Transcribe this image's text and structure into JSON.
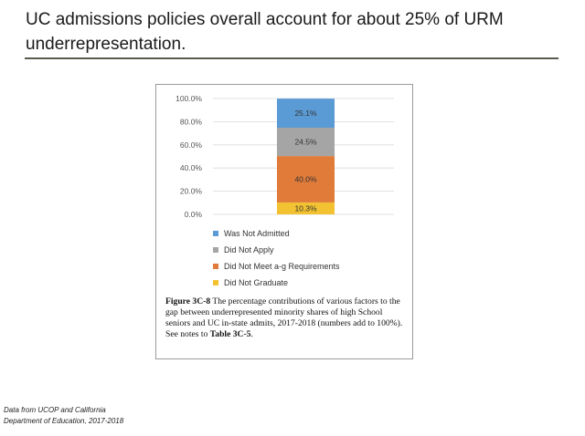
{
  "slide": {
    "title": "UC admissions policies overall account for about 25% of URM underrepresentation.",
    "source_line1": "Data from UCOP and California",
    "source_line2": "Department of Education, 2017-2018"
  },
  "figure": {
    "caption_label": "Figure 3C-8",
    "caption_text": " The percentage contributions of various factors to the gap between underrepresented minority shares of high School seniors and UC in-state admits, 2017-2018 (numbers add to 100%). See notes to ",
    "caption_ref": "Table 3C-5",
    "caption_end": "."
  },
  "chart_data": {
    "type": "bar",
    "stacked": true,
    "categories": [
      ""
    ],
    "ylim": [
      0,
      100
    ],
    "y_ticks": [
      "0.0%",
      "20.0%",
      "40.0%",
      "60.0%",
      "80.0%",
      "100.0%"
    ],
    "grid": true,
    "legend_position": "bottom",
    "series": [
      {
        "name": "Did Not Graduate",
        "values": [
          10.3
        ],
        "label": "10.3%",
        "color": "#f2c232"
      },
      {
        "name": "Did Not Meet a-g Requirements",
        "values": [
          40.0
        ],
        "label": "40.0%",
        "color": "#e07b3a"
      },
      {
        "name": "Did Not Apply",
        "values": [
          24.5
        ],
        "label": "24.5%",
        "color": "#a5a5a5"
      },
      {
        "name": "Was Not Admitted",
        "values": [
          25.1
        ],
        "label": "25.1%",
        "color": "#5b9bd5"
      }
    ],
    "legend_order": [
      "Was Not Admitted",
      "Did Not Apply",
      "Did Not Meet a-g Requirements",
      "Did Not Graduate"
    ]
  }
}
